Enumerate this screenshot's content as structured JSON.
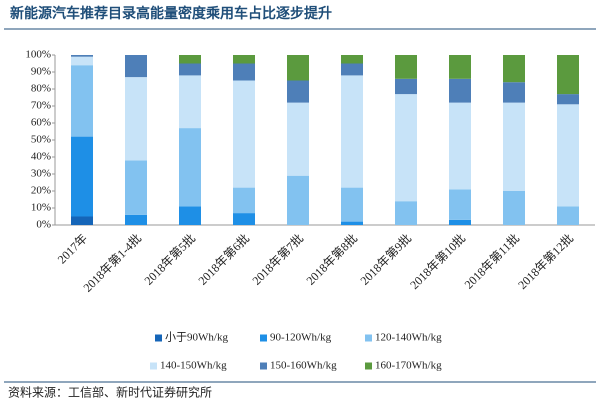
{
  "chart_data": {
    "type": "stacked_bar",
    "title": "新能源汽车推荐目录高能量密度乘用车占比逐步提升",
    "source": "资料来源：工信部、新时代证券研究所",
    "categories": [
      "2017年",
      "2018年第1-4批",
      "2018年第5批",
      "2018年第6批",
      "2018年第7批",
      "2018年第8批",
      "2018年第9批",
      "2018年第10批",
      "2018年第11批",
      "2018年第12批"
    ],
    "series": [
      {
        "name": "小于90Wh/kg",
        "color": "#1565b8",
        "values": [
          5,
          0,
          0,
          0,
          0,
          0,
          0,
          0,
          0,
          0
        ]
      },
      {
        "name": "90-120Wh/kg",
        "color": "#1e8fe6",
        "values": [
          47,
          6,
          11,
          7,
          0,
          2,
          0,
          3,
          0,
          0
        ]
      },
      {
        "name": "120-140Wh/kg",
        "color": "#82c2f0",
        "values": [
          42,
          32,
          46,
          15,
          29,
          20,
          14,
          18,
          20,
          11
        ]
      },
      {
        "name": "140-150Wh/kg",
        "color": "#c7e3f8",
        "values": [
          5,
          49,
          31,
          63,
          43,
          66,
          63,
          51,
          52,
          60
        ]
      },
      {
        "name": "150-160Wh/kg",
        "color": "#4e7fb8",
        "values": [
          1,
          13,
          7,
          10,
          13,
          7,
          9,
          14,
          12,
          6
        ]
      },
      {
        "name": "160-170Wh/kg",
        "color": "#5b9a3e",
        "values": [
          0,
          0,
          5,
          5,
          15,
          5,
          14,
          14,
          16,
          23
        ]
      }
    ],
    "ylim": [
      0,
      100
    ],
    "yticks": [
      {
        "value": 0,
        "label": "0%"
      },
      {
        "value": 10,
        "label": "10%"
      },
      {
        "value": 20,
        "label": "20%"
      },
      {
        "value": 30,
        "label": "30%"
      },
      {
        "value": 40,
        "label": "40%"
      },
      {
        "value": 50,
        "label": "50%"
      },
      {
        "value": 60,
        "label": "60%"
      },
      {
        "value": 70,
        "label": "70%"
      },
      {
        "value": 80,
        "label": "80%"
      },
      {
        "value": 90,
        "label": "90%"
      },
      {
        "value": 100,
        "label": "100%"
      }
    ],
    "legend": "bottom"
  }
}
